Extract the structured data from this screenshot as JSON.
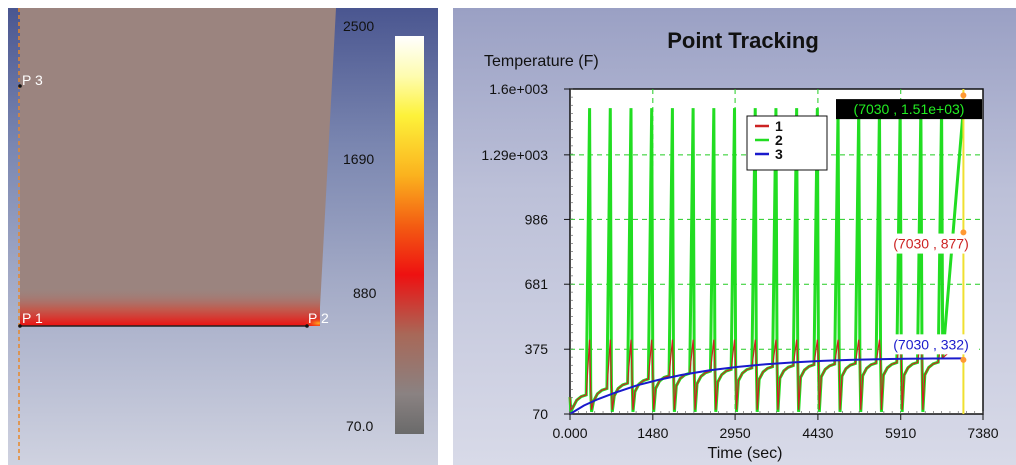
{
  "colormap": {
    "labels": [
      "2500",
      "1690",
      "880",
      "70.0"
    ],
    "points": [
      "P 1",
      "P 2",
      "P 3"
    ]
  },
  "chart_data": {
    "type": "line",
    "title": "Point Tracking",
    "ylabel": "Temperature (F)",
    "xlabel": "Time (sec)",
    "xticks": [
      "0.000",
      "1480",
      "2950",
      "4430",
      "5910",
      "7380"
    ],
    "yticks": [
      "70",
      "375",
      "681",
      "986",
      "1.29e+003",
      "1.6e+003"
    ],
    "xlim": [
      0,
      7380
    ],
    "ylim": [
      70,
      1600
    ],
    "grid": true,
    "legend_position": "top-center",
    "cursor_x": 7030,
    "cycle_period": 370,
    "series": [
      {
        "name": "1",
        "color": "#cc2222",
        "peak_value": 877,
        "recover_values": [
          160,
          190,
          215,
          235,
          250,
          262,
          272,
          280,
          287,
          293,
          298,
          302,
          305,
          308,
          310,
          312,
          313,
          314
        ],
        "end_value": 877
      },
      {
        "name": "2",
        "color": "#22dd22",
        "peak_value": 1510,
        "recover_values": [
          160,
          190,
          215,
          235,
          250,
          262,
          272,
          280,
          287,
          293,
          298,
          302,
          305,
          308,
          310,
          312,
          313,
          314
        ],
        "end_value": 1510
      },
      {
        "name": "3",
        "color": "#1a1acc",
        "x": [
          0,
          250,
          500,
          800,
          1200,
          1600,
          2000,
          2500,
          3000,
          3500,
          4000,
          4500,
          5000,
          5500,
          6000,
          6500,
          7030
        ],
        "y": [
          70,
          110,
          140,
          170,
          205,
          232,
          254,
          276,
          292,
          304,
          313,
          320,
          325,
          328,
          330,
          331,
          332
        ]
      }
    ],
    "annotations": [
      {
        "text": "(7030 , 1.51e+03)",
        "series": "2"
      },
      {
        "text": "(7030 , 877)",
        "series": "1"
      },
      {
        "text": "(7030 , 332)",
        "series": "3"
      }
    ]
  }
}
